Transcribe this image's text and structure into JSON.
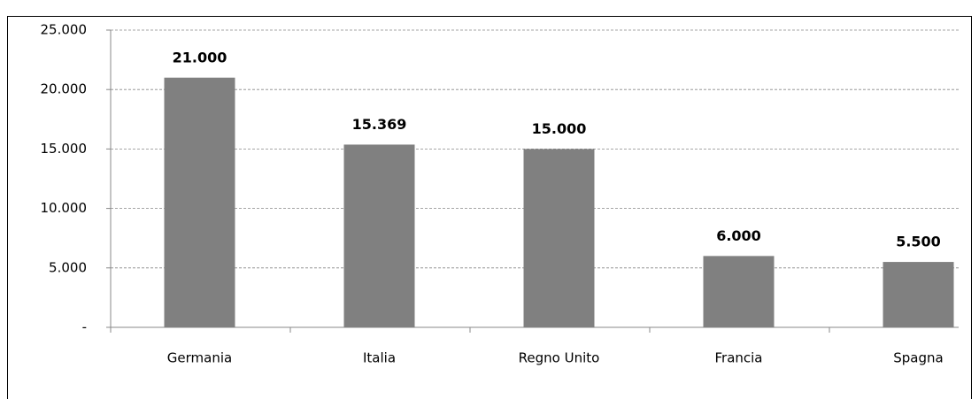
{
  "chart_data": {
    "type": "bar",
    "categories": [
      "Germania",
      "Italia",
      "Regno Unito",
      "Francia",
      "Spagna"
    ],
    "values": [
      21000,
      15369,
      15000,
      6000,
      5500
    ],
    "value_labels": [
      "21.000",
      "15.369",
      "15.000",
      "6.000",
      "5.500"
    ],
    "color": "#808080",
    "ylim": [
      0,
      25000
    ],
    "yticks": [
      {
        "value": 0,
        "label": "-"
      },
      {
        "value": 5000,
        "label": "5.000"
      },
      {
        "value": 10000,
        "label": "10.000"
      },
      {
        "value": 15000,
        "label": "15.000"
      },
      {
        "value": 20000,
        "label": "20.000"
      },
      {
        "value": 25000,
        "label": "25.000"
      }
    ],
    "grid": true
  }
}
